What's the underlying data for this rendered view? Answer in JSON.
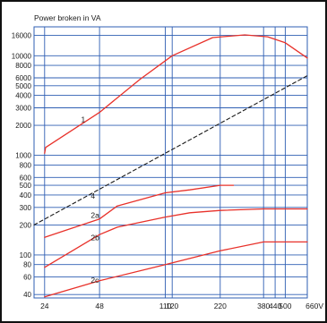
{
  "chart_data": {
    "type": "line",
    "title": "Power broken in VA",
    "xlabel": "",
    "ylabel": "",
    "x_scale": "log",
    "y_scale": "log",
    "x_ticks": [
      24,
      48,
      110,
      120,
      220,
      380,
      440,
      500,
      660
    ],
    "x_tick_labels": [
      "24",
      "48",
      "110",
      "120",
      "220",
      "380",
      "440",
      "500",
      "660V"
    ],
    "x_vertical_lines": [
      24,
      48,
      110,
      120,
      220,
      380,
      440,
      500,
      660
    ],
    "xlim": [
      21,
      660
    ],
    "y_ticks": [
      40,
      60,
      80,
      100,
      200,
      300,
      400,
      500,
      600,
      800,
      1000,
      2000,
      3000,
      4000,
      5000,
      6000,
      8000,
      10000,
      16000
    ],
    "y_tick_labels": [
      "40",
      "60",
      "80",
      "100",
      "200",
      "300",
      "400",
      "500",
      "600",
      "800",
      "1000",
      "2000",
      "3000",
      "4000",
      "5000",
      "6000",
      "8000",
      "10000",
      "16000"
    ],
    "ylim": [
      37,
      19500
    ],
    "grid": true,
    "colors": {
      "grid": "#2f5fb3",
      "curves": "#e8312a",
      "line_4": "#1a1a1a",
      "frame": "#111111"
    },
    "series": [
      {
        "name": "1",
        "x": [
          24,
          24.3,
          48,
          80,
          120,
          200,
          300,
          400,
          500,
          660
        ],
        "y": [
          1050,
          1200,
          2700,
          5800,
          10000,
          15200,
          16200,
          15500,
          13500,
          9500
        ],
        "style": "solid"
      },
      {
        "name": "4",
        "x": [
          21,
          660
        ],
        "y": [
          200,
          6300
        ],
        "style": "dashed"
      },
      {
        "name": "2a",
        "x": [
          24,
          48,
          60,
          110,
          150,
          220,
          260
        ],
        "y": [
          150,
          230,
          310,
          420,
          450,
          500,
          500
        ],
        "style": "solid"
      },
      {
        "name": "2b",
        "x": [
          24,
          48,
          60,
          110,
          150,
          220,
          380,
          660
        ],
        "y": [
          75,
          160,
          190,
          240,
          265,
          280,
          290,
          290
        ],
        "style": "solid"
      },
      {
        "name": "2c",
        "x": [
          24,
          48,
          110,
          220,
          380,
          660
        ],
        "y": [
          38,
          55,
          80,
          110,
          135,
          135
        ],
        "style": "solid"
      }
    ],
    "curve_label_values": [
      {
        "text": "1",
        "x": 38,
        "y": 2300
      },
      {
        "text": "4",
        "x": 43,
        "y": 390
      },
      {
        "text": "2a",
        "x": 43,
        "y": 250
      },
      {
        "text": "2b",
        "x": 43,
        "y": 150
      },
      {
        "text": "2c",
        "x": 43,
        "y": 56
      }
    ]
  }
}
